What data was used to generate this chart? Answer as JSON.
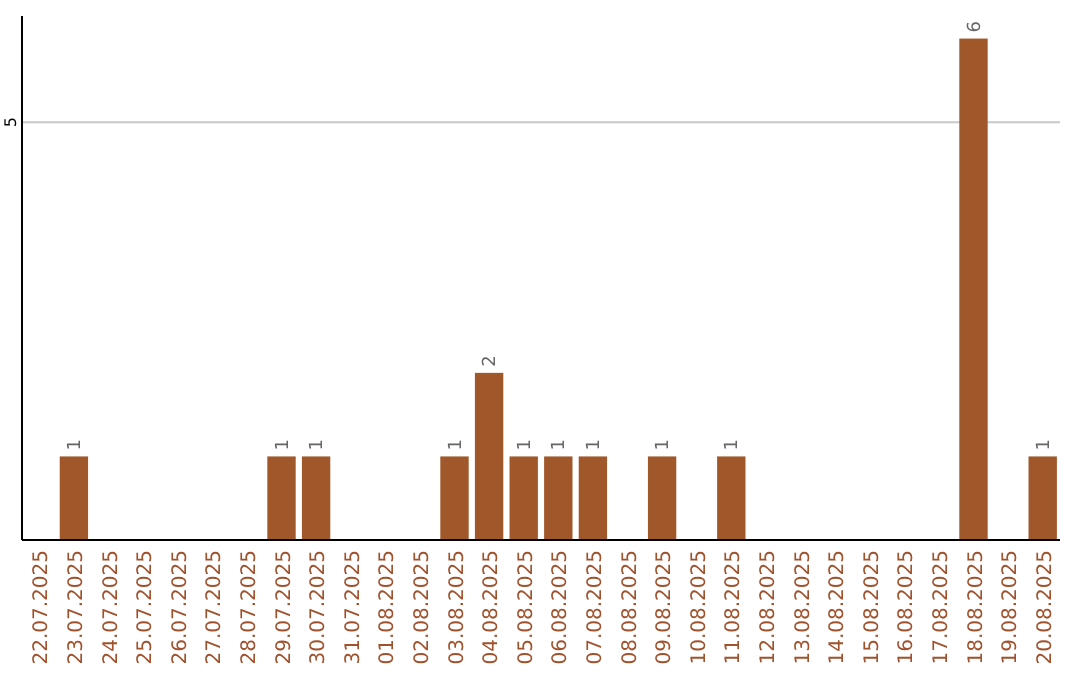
{
  "chart_data": {
    "type": "bar",
    "categories": [
      "22.07.2025",
      "23.07.2025",
      "24.07.2025",
      "25.07.2025",
      "26.07.2025",
      "27.07.2025",
      "28.07.2025",
      "29.07.2025",
      "30.07.2025",
      "31.07.2025",
      "01.08.2025",
      "02.08.2025",
      "03.08.2025",
      "04.08.2025",
      "05.08.2025",
      "06.08.2025",
      "07.08.2025",
      "08.08.2025",
      "09.08.2025",
      "10.08.2025",
      "11.08.2025",
      "12.08.2025",
      "13.08.2025",
      "14.08.2025",
      "15.08.2025",
      "16.08.2025",
      "17.08.2025",
      "18.08.2025",
      "19.08.2025",
      "20.08.2025"
    ],
    "values": [
      0,
      1,
      0,
      0,
      0,
      0,
      0,
      1,
      1,
      0,
      0,
      0,
      1,
      2,
      1,
      1,
      1,
      0,
      1,
      0,
      1,
      0,
      0,
      0,
      0,
      0,
      0,
      6,
      0,
      1
    ],
    "value_labels": [
      null,
      "1",
      null,
      null,
      null,
      null,
      null,
      "1",
      "1",
      null,
      null,
      null,
      "1",
      "2",
      "1",
      "1",
      "1",
      null,
      "1",
      null,
      "1",
      null,
      null,
      null,
      null,
      null,
      null,
      "6",
      null,
      "1"
    ],
    "color": "#a0572a",
    "ylim": [
      0,
      6.27
    ],
    "yticks": [
      5
    ],
    "grid": "y"
  }
}
